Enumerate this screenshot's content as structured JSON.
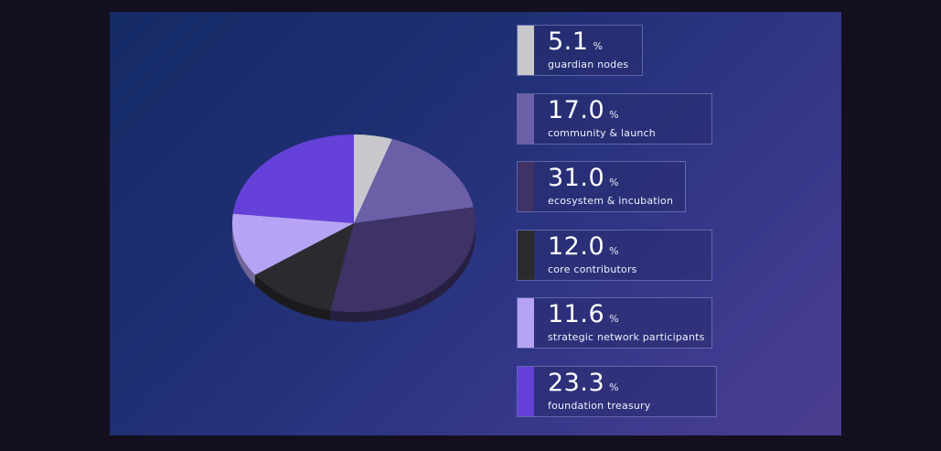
{
  "chart_data": {
    "type": "pie",
    "style": "3d",
    "unit": "%",
    "slices": [
      {
        "label": "guardian nodes",
        "value": 5.1,
        "color": "#c8c8cc"
      },
      {
        "label": "community & launch",
        "value": 17.0,
        "color": "#6b5fa8"
      },
      {
        "label": "ecosystem & incubation",
        "value": 31.0,
        "color": "#3e3266"
      },
      {
        "label": "core contributors",
        "value": 12.0,
        "color": "#2b2b2f"
      },
      {
        "label": "strategic network participants",
        "value": 11.6,
        "color": "#b6a3f4"
      },
      {
        "label": "foundation treasury",
        "value": 23.3,
        "color": "#6541d9"
      }
    ],
    "legend_placement": "right"
  }
}
